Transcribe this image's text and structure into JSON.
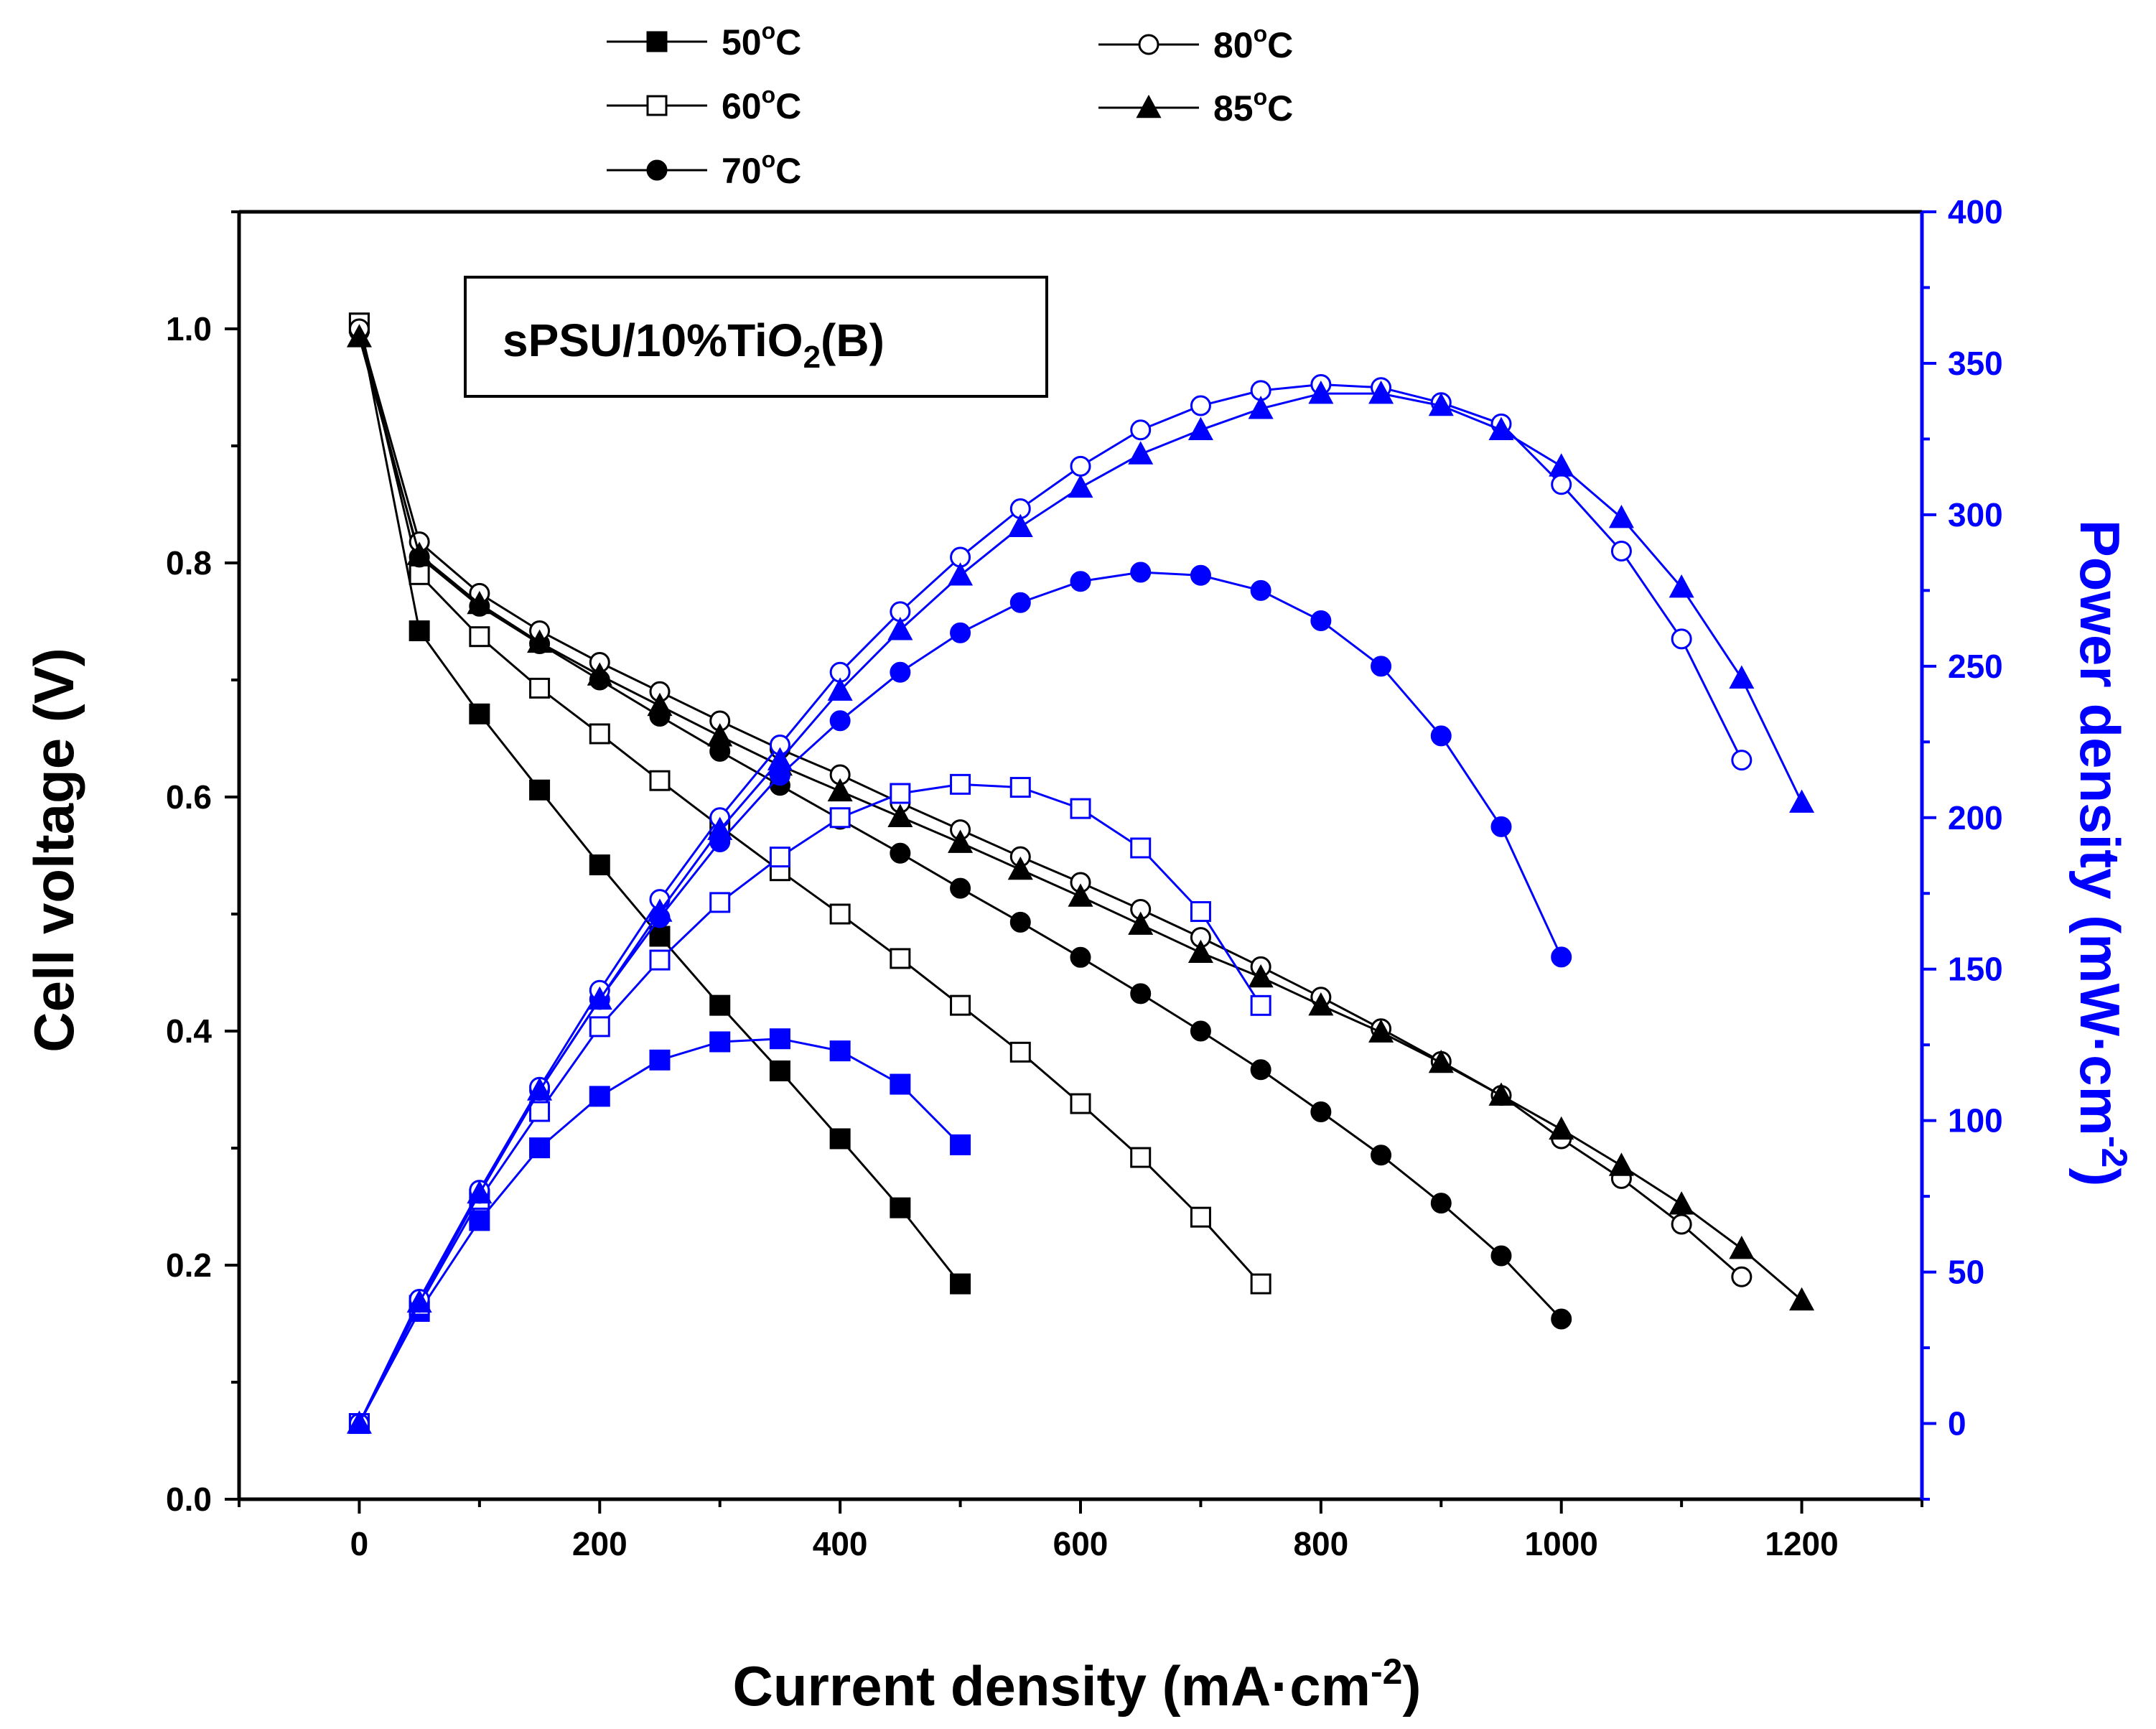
{
  "chart_data": {
    "type": "line",
    "title": "",
    "annotation": {
      "prefix": "sPSU/10%TiO",
      "sub": "2",
      "suffix": "(B)"
    },
    "xlabel": {
      "text": "Current density (mA·cm",
      "sup": "-2",
      "close": ")"
    },
    "ylabel": "Cell voltage (V)",
    "y2label": {
      "text": "Power density (mW·cm",
      "sup": "-2",
      "close": ")"
    },
    "xlim": [
      -100,
      1300
    ],
    "ylim": [
      0.0,
      1.1
    ],
    "y2lim": [
      -25,
      400
    ],
    "xticks": [
      "0",
      "200",
      "400",
      "600",
      "800",
      "1000",
      "1200"
    ],
    "yticks": [
      "0.0",
      "0.2",
      "0.4",
      "0.6",
      "0.8",
      "1.0"
    ],
    "y2ticks": [
      "0",
      "50",
      "100",
      "150",
      "200",
      "250",
      "300",
      "350",
      "400"
    ],
    "colors": {
      "voltage": "#000000",
      "power": "#0000ff"
    },
    "legend": [
      {
        "label": "50",
        "unit": "C",
        "marker": "square-filled"
      },
      {
        "label": "60",
        "unit": "C",
        "marker": "square-open"
      },
      {
        "label": "70",
        "unit": "C",
        "marker": "circle-filled"
      },
      {
        "label": "80",
        "unit": "C",
        "marker": "circle-open"
      },
      {
        "label": "85",
        "unit": "C",
        "marker": "triangle-filled"
      }
    ],
    "voltage_series": [
      {
        "name": "50°C",
        "marker": "square-filled",
        "x": [
          0,
          50,
          100,
          150,
          200,
          250,
          300,
          350,
          400,
          450,
          500
        ],
        "y": [
          1.005,
          0.742,
          0.671,
          0.606,
          0.542,
          0.481,
          0.422,
          0.366,
          0.308,
          0.249,
          0.184
        ]
      },
      {
        "name": "60°C",
        "marker": "square-open",
        "x": [
          0,
          50,
          100,
          150,
          200,
          250,
          300,
          350,
          400,
          450,
          500,
          550,
          600,
          650,
          700,
          750
        ],
        "y": [
          1.005,
          0.79,
          0.737,
          0.693,
          0.654,
          0.614,
          0.575,
          0.537,
          0.5,
          0.462,
          0.422,
          0.382,
          0.338,
          0.292,
          0.241,
          0.184
        ]
      },
      {
        "name": "70°C",
        "marker": "circle-filled",
        "x": [
          0,
          50,
          100,
          150,
          200,
          250,
          300,
          350,
          400,
          450,
          500,
          550,
          600,
          650,
          700,
          750,
          800,
          850,
          900,
          950,
          1000
        ],
        "y": [
          0.998,
          0.805,
          0.763,
          0.731,
          0.7,
          0.669,
          0.639,
          0.61,
          0.581,
          0.552,
          0.522,
          0.493,
          0.463,
          0.432,
          0.4,
          0.367,
          0.331,
          0.294,
          0.253,
          0.208,
          0.154
        ]
      },
      {
        "name": "80°C",
        "marker": "circle-open",
        "x": [
          0,
          50,
          100,
          150,
          200,
          250,
          300,
          350,
          400,
          450,
          500,
          550,
          600,
          650,
          700,
          750,
          800,
          850,
          900,
          950,
          1000,
          1050,
          1100,
          1150
        ],
        "y": [
          1.0,
          0.818,
          0.774,
          0.742,
          0.715,
          0.69,
          0.665,
          0.641,
          0.619,
          0.595,
          0.572,
          0.549,
          0.527,
          0.504,
          0.48,
          0.455,
          0.429,
          0.402,
          0.374,
          0.345,
          0.308,
          0.274,
          0.235,
          0.19
        ]
      },
      {
        "name": "85°C",
        "marker": "triangle-filled",
        "x": [
          0,
          50,
          100,
          150,
          200,
          250,
          300,
          350,
          400,
          450,
          500,
          550,
          600,
          650,
          700,
          750,
          800,
          850,
          900,
          950,
          1000,
          1050,
          1100,
          1150,
          1200
        ],
        "y": [
          0.993,
          0.807,
          0.765,
          0.732,
          0.704,
          0.678,
          0.652,
          0.627,
          0.605,
          0.583,
          0.561,
          0.538,
          0.515,
          0.491,
          0.467,
          0.446,
          0.422,
          0.399,
          0.373,
          0.345,
          0.316,
          0.285,
          0.252,
          0.214,
          0.17
        ]
      }
    ],
    "power_series": [
      {
        "name": "50°C",
        "marker": "square-filled",
        "x": [
          0,
          50,
          100,
          150,
          200,
          250,
          300,
          350,
          400,
          450,
          500
        ],
        "y": [
          0,
          37,
          67,
          91,
          108,
          120,
          126,
          127,
          123,
          112,
          92
        ]
      },
      {
        "name": "60°C",
        "marker": "square-open",
        "x": [
          0,
          50,
          100,
          150,
          200,
          250,
          300,
          350,
          400,
          450,
          500,
          550,
          600,
          650,
          700,
          750
        ],
        "y": [
          0,
          39,
          74,
          103,
          131,
          153,
          172,
          187,
          200,
          208,
          211,
          210,
          203,
          190,
          169,
          138
        ]
      },
      {
        "name": "70°C",
        "marker": "circle-filled",
        "x": [
          0,
          50,
          100,
          150,
          200,
          250,
          300,
          350,
          400,
          450,
          500,
          550,
          600,
          650,
          700,
          750,
          800,
          850,
          900,
          950,
          1000
        ],
        "y": [
          0,
          40,
          76,
          110,
          140,
          167,
          192,
          214,
          232,
          248,
          261,
          271,
          278,
          281,
          280,
          275,
          265,
          250,
          227,
          197,
          154
        ]
      },
      {
        "name": "80°C",
        "marker": "circle-open",
        "x": [
          0,
          50,
          100,
          150,
          200,
          250,
          300,
          350,
          400,
          450,
          500,
          550,
          600,
          650,
          700,
          750,
          800,
          850,
          900,
          950,
          1000,
          1050,
          1100,
          1150
        ],
        "y": [
          0,
          41,
          77,
          111,
          143,
          173,
          200,
          224,
          248,
          268,
          286,
          302,
          316,
          328,
          336,
          341,
          343,
          342,
          337,
          330,
          310,
          288,
          259,
          219
        ]
      },
      {
        "name": "85°C",
        "marker": "triangle-filled",
        "x": [
          0,
          50,
          100,
          150,
          200,
          250,
          300,
          350,
          400,
          450,
          500,
          550,
          600,
          650,
          700,
          750,
          800,
          850,
          900,
          950,
          1000,
          1050,
          1100,
          1150,
          1200
        ],
        "y": [
          0,
          40,
          76,
          110,
          140,
          169,
          196,
          219,
          242,
          262,
          280,
          296,
          309,
          320,
          328,
          335,
          340,
          340,
          336,
          328,
          316,
          299,
          276,
          246,
          205
        ]
      }
    ]
  }
}
